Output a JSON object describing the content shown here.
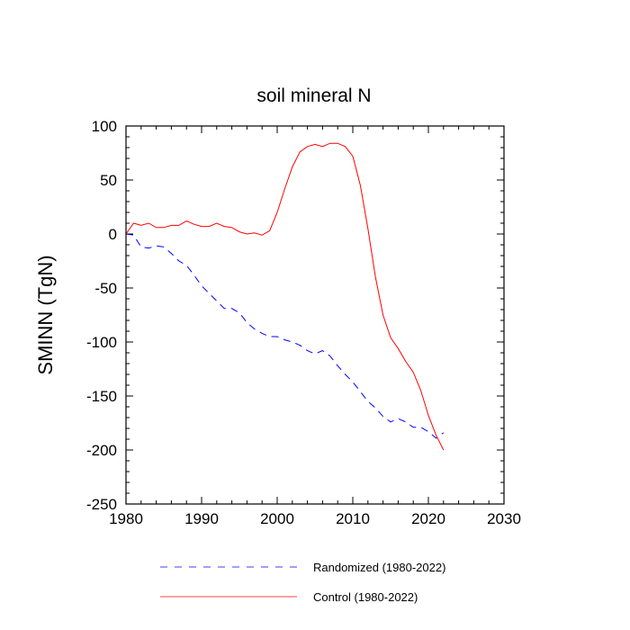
{
  "chart_data": {
    "type": "line",
    "title": "soil mineral N",
    "xlabel": "",
    "ylabel": "SMINN  (TgN)",
    "xlim": [
      1980,
      2030
    ],
    "ylim": [
      -250,
      100
    ],
    "xticks": [
      1980,
      1990,
      2000,
      2010,
      2020,
      2030
    ],
    "yticks": [
      100,
      50,
      0,
      -50,
      -100,
      -150,
      -200,
      -250
    ],
    "xtick_labels": [
      "1980",
      "1990",
      "2000",
      "2010",
      "2020",
      "2030"
    ],
    "ytick_labels": [
      "100",
      "50",
      "0",
      "-50",
      "-100",
      "-150",
      "-200",
      "-250"
    ],
    "grid": false,
    "legend_position": "bottom",
    "series": [
      {
        "name": "Randomized (1980-2022)",
        "color": "#0000ff",
        "style": "dashed",
        "x": [
          1980,
          1981,
          1982,
          1983,
          1984,
          1985,
          1986,
          1987,
          1988,
          1989,
          1990,
          1991,
          1992,
          1993,
          1994,
          1995,
          1996,
          1997,
          1998,
          1999,
          2000,
          2001,
          2002,
          2003,
          2004,
          2005,
          2006,
          2007,
          2008,
          2009,
          2010,
          2011,
          2012,
          2013,
          2014,
          2015,
          2016,
          2017,
          2018,
          2019,
          2020,
          2021,
          2022
        ],
        "values": [
          0,
          -1,
          -12,
          -13,
          -11,
          -12,
          -18,
          -25,
          -29,
          -38,
          -48,
          -55,
          -62,
          -69,
          -69,
          -73,
          -82,
          -88,
          -92,
          -95,
          -95,
          -98,
          -100,
          -103,
          -108,
          -111,
          -108,
          -113,
          -122,
          -130,
          -137,
          -146,
          -155,
          -161,
          -169,
          -174,
          -171,
          -174,
          -179,
          -179,
          -183,
          -189,
          -184
        ]
      },
      {
        "name": "Control (1980-2022)",
        "color": "#ff0000",
        "style": "solid",
        "x": [
          1980,
          1981,
          1982,
          1983,
          1984,
          1985,
          1986,
          1987,
          1988,
          1989,
          1990,
          1991,
          1992,
          1993,
          1994,
          1995,
          1996,
          1997,
          1998,
          1999,
          2000,
          2001,
          2002,
          2003,
          2004,
          2005,
          2006,
          2007,
          2008,
          2009,
          2010,
          2011,
          2012,
          2013,
          2014,
          2015,
          2016,
          2017,
          2018,
          2019,
          2020,
          2021,
          2022
        ],
        "values": [
          0,
          10,
          8,
          10,
          6,
          6,
          8,
          8,
          12,
          9,
          7,
          7,
          10,
          7,
          6,
          2,
          0,
          1,
          -1,
          3,
          20,
          42,
          62,
          76,
          81,
          83,
          81,
          84,
          84,
          81,
          72,
          45,
          5,
          -40,
          -75,
          -96,
          -106,
          -118,
          -128,
          -145,
          -168,
          -186,
          -200
        ]
      }
    ]
  }
}
